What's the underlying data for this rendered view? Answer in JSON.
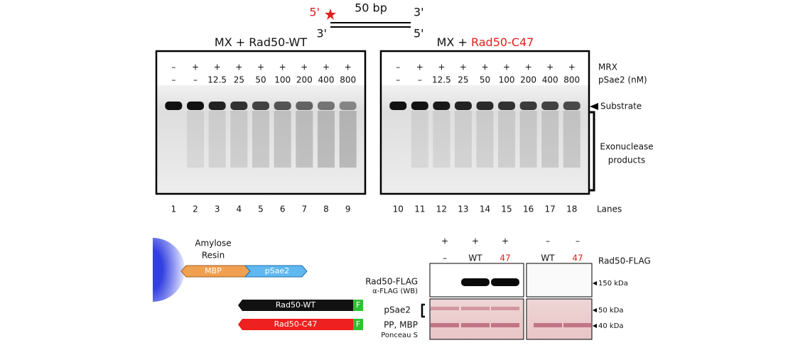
{
  "schematic": {
    "strand_top_5": "5'",
    "length": "50 bp",
    "strand_top_3": "3'",
    "strand_bottom_3": "3'",
    "strand_bottom_5": "5'"
  },
  "gels": [
    {
      "title_prefix": "MX + ",
      "title_name": "Rad50-WT",
      "mrx": [
        "–",
        "+",
        "+",
        "+",
        "+",
        "+",
        "+",
        "+",
        "+"
      ],
      "psae2": [
        "–",
        "–",
        "12.5",
        "25",
        "50",
        "100",
        "200",
        "400",
        "800"
      ],
      "lanes": [
        1,
        2,
        3,
        4,
        5,
        6,
        7,
        8,
        9
      ]
    },
    {
      "title_prefix": "MX + ",
      "title_name": "Rad50-C47",
      "mrx": [
        "–",
        "+",
        "+",
        "+",
        "+",
        "+",
        "+",
        "+",
        "+"
      ],
      "psae2": [
        "–",
        "–",
        "12.5",
        "25",
        "50",
        "100",
        "200",
        "400",
        "800"
      ],
      "lanes": [
        10,
        11,
        12,
        13,
        14,
        15,
        16,
        17,
        18
      ]
    }
  ],
  "row_labels": {
    "mrx": "MRX",
    "psae2": "pSae2 (nM)",
    "lanes": "Lanes"
  },
  "band_labels": {
    "substrate": "Substrate",
    "products": [
      "Exonuclease",
      "products"
    ]
  },
  "resin": {
    "label": [
      "Amylose",
      "Resin"
    ],
    "mbp": "MBP",
    "psae2": "pSae2"
  },
  "constructs": [
    {
      "name": "Rad50-WT",
      "tag": "F"
    },
    {
      "name": "Rad50-C47",
      "tag": "F"
    }
  ],
  "western": {
    "mrx": [
      "+",
      "+",
      "+",
      "–",
      "–"
    ],
    "rad50": [
      "–",
      "WT",
      "47",
      "WT",
      "47"
    ],
    "rad50_label": "Rad50-FLAG",
    "blot_label": "Rad50-FLAG",
    "blot_sublabel": "α-FLAG (WB)",
    "psae2": "pSae2",
    "pp_mbp": "PP, MBP",
    "ponceau": "Ponceau S",
    "markers": [
      "150 kDa",
      "50 kDa",
      "40 kDa"
    ]
  }
}
